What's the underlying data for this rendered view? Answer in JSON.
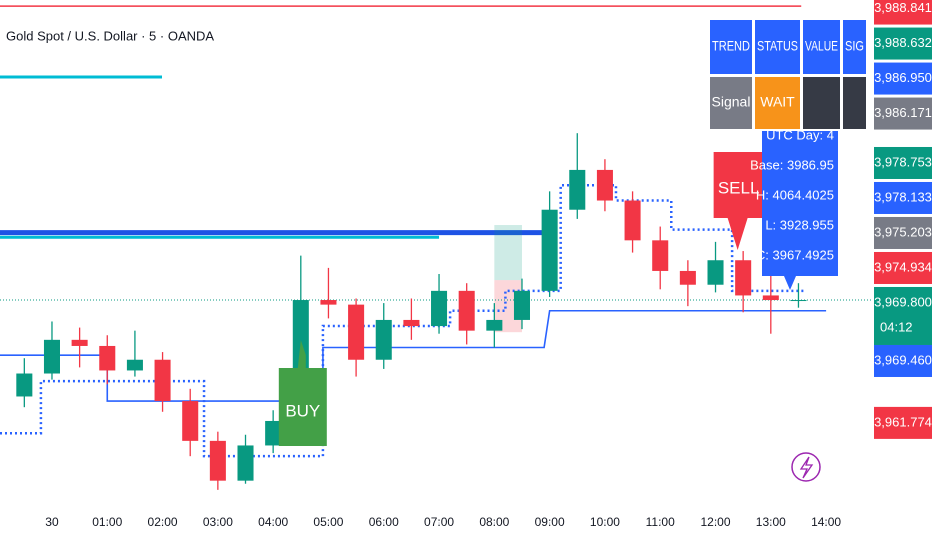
{
  "chart_data": {
    "type": "candlestick",
    "title": "Gold Spot / U.S. Dollar · 5 · OANDA",
    "x": [
      -0.5,
      0,
      0.5,
      1,
      1.5,
      2,
      2.5,
      3,
      3.5,
      4,
      4.5,
      5,
      5.5,
      6,
      6.5,
      7,
      7.5,
      8,
      8.5,
      9,
      9.5,
      10,
      10.5,
      11,
      11.5,
      12,
      12.5,
      13,
      13.5
    ],
    "open": [
      3963.5,
      3965.0,
      3967.2,
      3966.8,
      3965.2,
      3965.9,
      3963.2,
      3960.6,
      3958.0,
      3960.3,
      3961.9,
      3969.8,
      3969.5,
      3965.9,
      3968.5,
      3968.1,
      3970.4,
      3967.8,
      3968.5,
      3970.4,
      3975.7,
      3978.3,
      3976.3,
      3973.7,
      3971.7,
      3970.8,
      3972.4,
      3970.1,
      3969.8
    ],
    "high": [
      3966.0,
      3968.4,
      3968.0,
      3967.5,
      3967.8,
      3966.4,
      3964.0,
      3961.2,
      3961.0,
      3962.6,
      3972.7,
      3971.9,
      3969.9,
      3969.6,
      3969.9,
      3971.5,
      3970.9,
      3969.6,
      3971.2,
      3976.9,
      3980.7,
      3979.0,
      3976.9,
      3974.6,
      3972.4,
      3973.6,
      3973.0,
      3971.6,
      3970.9
    ],
    "low": [
      3962.8,
      3964.6,
      3965.4,
      3964.3,
      3964.8,
      3962.5,
      3959.6,
      3957.4,
      3957.8,
      3959.8,
      3961.6,
      3968.6,
      3964.8,
      3965.3,
      3967.2,
      3967.6,
      3966.9,
      3966.7,
      3967.9,
      3970.0,
      3975.1,
      3975.6,
      3972.9,
      3970.5,
      3969.4,
      3970.3,
      3969.0,
      3967.6,
      3969.3
    ],
    "close": [
      3965.0,
      3967.2,
      3966.8,
      3965.2,
      3965.9,
      3963.2,
      3960.6,
      3958.0,
      3960.3,
      3961.9,
      3969.8,
      3969.5,
      3965.9,
      3968.5,
      3968.1,
      3970.4,
      3967.8,
      3968.5,
      3970.4,
      3975.7,
      3978.3,
      3976.3,
      3973.7,
      3971.7,
      3970.8,
      3972.4,
      3970.1,
      3969.8,
      3969.8
    ],
    "up_color": "#089981",
    "down_color": "#f23645",
    "xlim": [
      -0.94,
      14.83
    ],
    "ylim": [
      3955.3,
      3989.4
    ],
    "xticks": [
      {
        "value": 0,
        "label": "30"
      },
      {
        "value": 1,
        "label": "01:00"
      },
      {
        "value": 2,
        "label": "02:00"
      },
      {
        "value": 3,
        "label": "03:00"
      },
      {
        "value": 4,
        "label": "04:00"
      },
      {
        "value": 5,
        "label": "05:00"
      },
      {
        "value": 6,
        "label": "06:00"
      },
      {
        "value": 7,
        "label": "07:00"
      },
      {
        "value": 8,
        "label": "08:00"
      },
      {
        "value": 9,
        "label": "09:00"
      },
      {
        "value": 10,
        "label": "10:00"
      },
      {
        "value": 11,
        "label": "11:00"
      },
      {
        "value": 12,
        "label": "12:00"
      },
      {
        "value": 13,
        "label": "13:00"
      },
      {
        "value": 14,
        "label": "14:00"
      }
    ],
    "price_labels": [
      {
        "value": 3988.841,
        "label": "3,988.841",
        "color": "#f23645"
      },
      {
        "value": 3988.632,
        "label": "3,988.632",
        "color": "#089981"
      },
      {
        "value": 3986.95,
        "label": "3,986.950",
        "color": "#2962ff"
      },
      {
        "value": 3986.171,
        "label": "3,986.171",
        "color": "#787b86"
      },
      {
        "value": 3978.753,
        "label": "3,978.753",
        "color": "#089981"
      },
      {
        "value": 3978.133,
        "label": "3,978.133",
        "color": "#2962ff"
      },
      {
        "value": 3975.203,
        "label": "3,975.203",
        "color": "#787b86"
      },
      {
        "value": 3974.934,
        "label": "3,974.934",
        "color": "#f23645"
      },
      {
        "value": 3969.8,
        "label": "3,969.800",
        "color": "#089981"
      },
      {
        "value": 3969.46,
        "label": "3,969.460",
        "color": "#2962ff"
      },
      {
        "value": 3961.774,
        "label": "3,961.774",
        "color": "#f23645"
      }
    ],
    "countdown": "04:12",
    "overlays": [
      {
        "color": "#2962ff",
        "style": "solid",
        "x": [
          -0.94,
          1,
          1,
          4.9,
          4.9,
          8.9,
          9,
          14
        ],
        "values": [
          3966.2,
          3966.2,
          3963.2,
          3963.2,
          3966.7,
          3966.7,
          3969.1,
          3969.1
        ]
      },
      {
        "color": "#2962ff",
        "style": "dotted",
        "x": [
          -0.94,
          -0.2,
          -0.2,
          2.75,
          2.75,
          4.9,
          4.9,
          7.2,
          7.2,
          8.2,
          8.2,
          9.2,
          9.2,
          10.2,
          10.2,
          11.2,
          11.2,
          12.3,
          12.3,
          13.6
        ],
        "values": [
          3961.1,
          3961.1,
          3964.5,
          3964.5,
          3959.6,
          3959.6,
          3968.1,
          3968.1,
          3969.1,
          3969.1,
          3970.4,
          3970.4,
          3977.3,
          3977.3,
          3976.3,
          3976.3,
          3974.4,
          3974.4,
          3970.4,
          3970.4
        ]
      }
    ],
    "levels": [
      {
        "value": 3974.2,
        "x": [
          -0.94,
          9.0
        ],
        "color": "#1e53e5",
        "width": 5
      },
      {
        "value": 3973.9,
        "x": [
          -0.94,
          7.0
        ],
        "color": "#00bcd4",
        "width": 3
      },
      {
        "value": 3989.0,
        "x": [
          -0.94,
          13.55
        ],
        "color": "#f23645",
        "width": 1.5
      }
    ],
    "zones": [
      {
        "x": [
          8,
          8.5
        ],
        "top": 3974.7,
        "bottom": 3971.1,
        "color": "rgba(8,153,129,0.2)"
      },
      {
        "x": [
          8,
          8.5
        ],
        "top": 3971.1,
        "bottom": 3967.7,
        "color": "rgba(242,54,69,0.2)"
      }
    ],
    "signals": [
      {
        "label": "BUY",
        "x": 4.5,
        "side": "up",
        "color": "#43a047"
      },
      {
        "label": "SELL",
        "x": 12.4,
        "side": "down",
        "color": "#f23645"
      }
    ],
    "info_box": [
      "UTC Day: 4",
      "Base: 3986.95",
      "H: 4064.4025",
      "L: 3928.955",
      "C: 3967.4925"
    ],
    "table": {
      "header": [
        "TREND",
        "STATUS",
        "VALUE",
        "SIG"
      ],
      "rows": [
        [
          "Signal",
          "WAIT"
        ]
      ]
    }
  }
}
